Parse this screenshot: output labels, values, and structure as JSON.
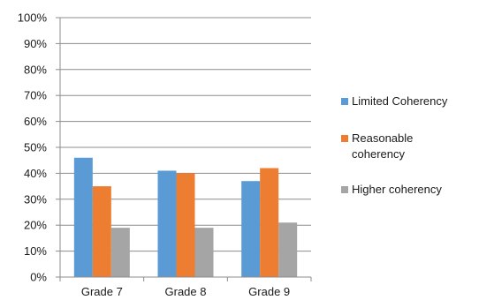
{
  "chart_data": {
    "type": "bar",
    "categories": [
      "Grade 7",
      "Grade 8",
      "Grade 9"
    ],
    "series": [
      {
        "name": "Limited Coherency",
        "values": [
          46,
          41,
          37
        ],
        "color": "#5b9bd5"
      },
      {
        "name": "Reasonable coherency",
        "values": [
          35,
          40,
          42
        ],
        "color": "#ed7d31"
      },
      {
        "name": "Higher coherency",
        "values": [
          19,
          19,
          21
        ],
        "color": "#a5a5a5"
      }
    ],
    "ylim": [
      0,
      100
    ],
    "yticks": [
      "0%",
      "10%",
      "20%",
      "30%",
      "40%",
      "50%",
      "60%",
      "70%",
      "80%",
      "90%",
      "100%"
    ],
    "legend_position": "right",
    "grid": true
  }
}
